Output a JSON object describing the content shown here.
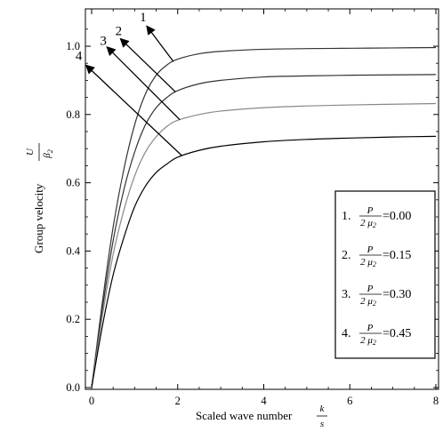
{
  "chart_data": {
    "type": "line",
    "xlabel": "Scaled wave number",
    "xlabel_frac": {
      "num": "k",
      "den": "s"
    },
    "ylabel": "Group velocity",
    "ylabel_frac": {
      "num": "U",
      "den": "β",
      "den_sub": "2"
    },
    "xlim": [
      0,
      8
    ],
    "ylim": [
      0,
      1.1
    ],
    "xticks": [
      0,
      2,
      4,
      6,
      8
    ],
    "xtick_labels": [
      "0",
      "2",
      "4",
      "6",
      "8"
    ],
    "yticks": [
      0.0,
      0.2,
      0.4,
      0.6,
      0.8,
      1.0
    ],
    "ytick_labels": [
      "0.0",
      "0.2",
      "0.4",
      "0.6",
      "0.8",
      "1.0"
    ],
    "grid": false,
    "legend_position": "bottom-right",
    "series": [
      {
        "label": "1",
        "legend_num": "1.",
        "legend_value": "=0.00",
        "frac_num": "P",
        "frac_den": "2 μ",
        "frac_den_sub": "2",
        "color": "#333333",
        "x": [
          0,
          0.25,
          0.5,
          0.75,
          1.0,
          1.25,
          1.5,
          1.75,
          2.0,
          2.5,
          3.0,
          4.0,
          5.0,
          6.0,
          7.0,
          8.0
        ],
        "y": [
          0,
          0.25,
          0.47,
          0.64,
          0.77,
          0.86,
          0.915,
          0.945,
          0.962,
          0.978,
          0.985,
          0.991,
          0.993,
          0.994,
          0.995,
          0.996
        ]
      },
      {
        "label": "2",
        "legend_num": "2.",
        "legend_value": "=0.15",
        "frac_num": "P",
        "frac_den": "2 μ",
        "frac_den_sub": "2",
        "color": "#333333",
        "x": [
          0,
          0.25,
          0.5,
          0.75,
          1.0,
          1.25,
          1.5,
          1.75,
          2.0,
          2.5,
          3.0,
          4.0,
          5.0,
          6.0,
          7.0,
          8.0
        ],
        "y": [
          0,
          0.23,
          0.43,
          0.58,
          0.69,
          0.77,
          0.82,
          0.85,
          0.87,
          0.89,
          0.9,
          0.91,
          0.913,
          0.915,
          0.916,
          0.917
        ]
      },
      {
        "label": "3",
        "legend_num": "3.",
        "legend_value": "=0.30",
        "frac_num": "P",
        "frac_den": "2 μ",
        "frac_den_sub": "2",
        "color": "#888888",
        "x": [
          0,
          0.25,
          0.5,
          0.75,
          1.0,
          1.25,
          1.5,
          1.75,
          2.0,
          2.5,
          3.0,
          4.0,
          5.0,
          6.0,
          7.0,
          8.0
        ],
        "y": [
          0,
          0.21,
          0.39,
          0.52,
          0.62,
          0.69,
          0.735,
          0.765,
          0.783,
          0.8,
          0.81,
          0.82,
          0.825,
          0.828,
          0.83,
          0.832
        ]
      },
      {
        "label": "4",
        "legend_num": "4.",
        "legend_value": "=0.45",
        "frac_num": "P",
        "frac_den": "2 μ",
        "frac_den_sub": "2",
        "color": "#000000",
        "x": [
          0,
          0.25,
          0.5,
          0.75,
          1.0,
          1.25,
          1.5,
          1.75,
          2.0,
          2.5,
          3.0,
          4.0,
          5.0,
          6.0,
          7.0,
          8.0
        ],
        "y": [
          0,
          0.18,
          0.33,
          0.44,
          0.53,
          0.59,
          0.63,
          0.655,
          0.675,
          0.695,
          0.707,
          0.72,
          0.727,
          0.731,
          0.734,
          0.736
        ]
      }
    ]
  }
}
